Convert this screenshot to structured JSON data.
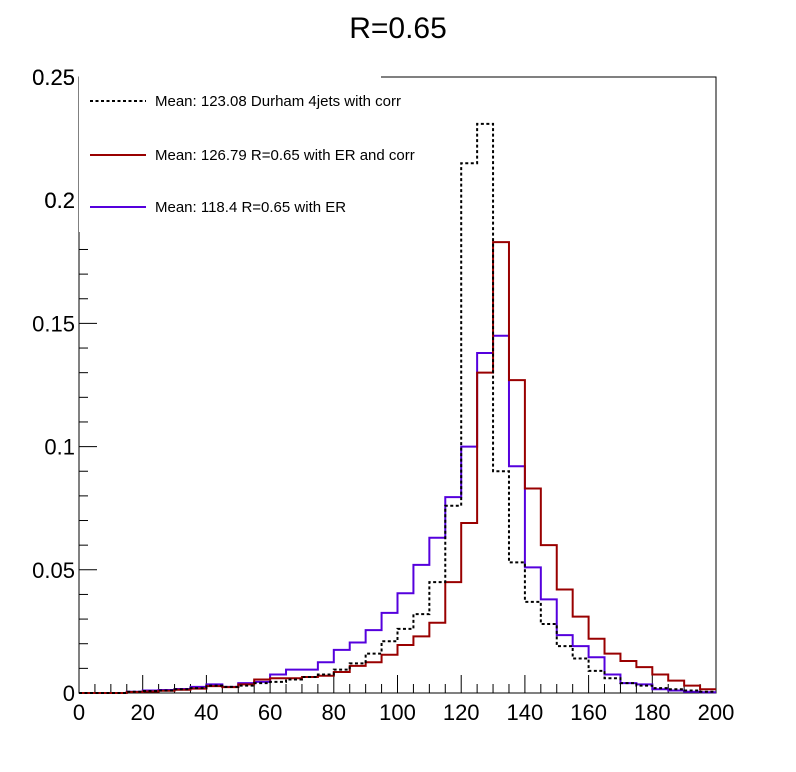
{
  "chart_data": {
    "type": "line",
    "title": "R=0.65",
    "xlabel": "",
    "ylabel": "",
    "xlim": [
      0,
      200
    ],
    "ylim": [
      0,
      0.25
    ],
    "x_ticks": [
      "0",
      "20",
      "40",
      "60",
      "80",
      "100",
      "120",
      "140",
      "160",
      "180",
      "200"
    ],
    "y_ticks": [
      "0",
      "0.05",
      "0.1",
      "0.15",
      "0.2",
      "0.25"
    ],
    "bin_edges": [
      0,
      5,
      10,
      15,
      20,
      25,
      30,
      35,
      40,
      45,
      50,
      55,
      60,
      65,
      70,
      75,
      80,
      85,
      90,
      95,
      100,
      105,
      110,
      115,
      120,
      125,
      130,
      135,
      140,
      145,
      150,
      155,
      160,
      165,
      170,
      175,
      180,
      185,
      190,
      195,
      200
    ],
    "grid": false,
    "legend_position": "top-left",
    "series": [
      {
        "name": "Mean: 123.08 Durham 4jets with corr",
        "color": "#000000",
        "style": "dotted",
        "values": [
          0,
          0,
          0,
          0.0005,
          0.0008,
          0.001,
          0.0015,
          0.002,
          0.003,
          0.0025,
          0.003,
          0.004,
          0.0045,
          0.0055,
          0.0065,
          0.0075,
          0.0095,
          0.012,
          0.016,
          0.021,
          0.026,
          0.032,
          0.045,
          0.076,
          0.215,
          0.231,
          0.09,
          0.053,
          0.037,
          0.028,
          0.019,
          0.014,
          0.009,
          0.006,
          0.004,
          0.003,
          0.002,
          0.0015,
          0.001,
          0.0005
        ]
      },
      {
        "name": "Mean: 126.79 R=0.65 with ER and corr",
        "color": "#990000",
        "style": "solid",
        "values": [
          0,
          0,
          0,
          0.0004,
          0.0006,
          0.0009,
          0.0013,
          0.0018,
          0.0028,
          0.0024,
          0.0035,
          0.0055,
          0.006,
          0.006,
          0.0065,
          0.007,
          0.0085,
          0.011,
          0.0125,
          0.0155,
          0.0195,
          0.023,
          0.0285,
          0.045,
          0.069,
          0.13,
          0.183,
          0.127,
          0.083,
          0.06,
          0.042,
          0.031,
          0.022,
          0.016,
          0.013,
          0.0105,
          0.0075,
          0.005,
          0.003,
          0.0015
        ]
      },
      {
        "name": "Mean: 118.4 R=0.65 with ER",
        "color": "#5500dd",
        "style": "solid",
        "values": [
          0,
          0,
          0,
          0.0005,
          0.001,
          0.0012,
          0.0016,
          0.0025,
          0.0035,
          0.0025,
          0.004,
          0.0045,
          0.0075,
          0.0095,
          0.0095,
          0.0125,
          0.0175,
          0.0205,
          0.0255,
          0.0325,
          0.0405,
          0.052,
          0.063,
          0.0795,
          0.1,
          0.138,
          0.145,
          0.092,
          0.051,
          0.038,
          0.0235,
          0.019,
          0.0145,
          0.0075,
          0.004,
          0.0035,
          0.0015,
          0.001,
          0.0005,
          0.0003
        ]
      }
    ]
  }
}
